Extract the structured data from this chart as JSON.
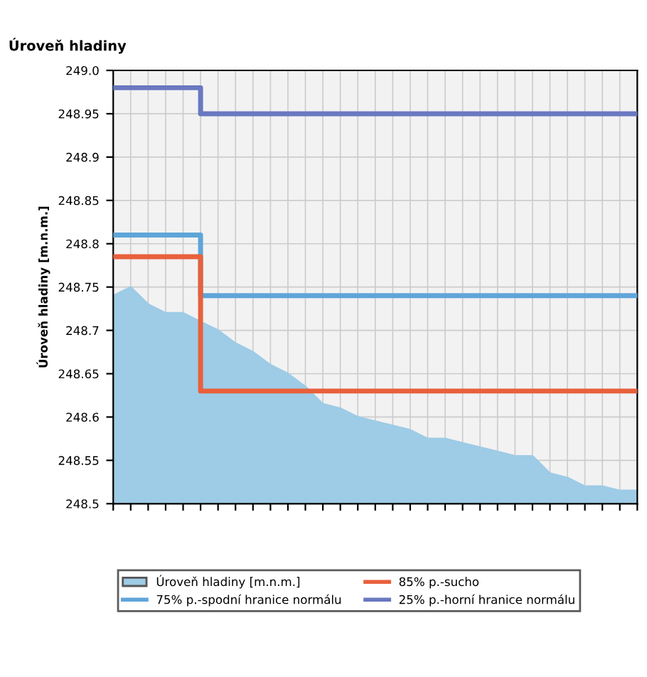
{
  "chart_data": {
    "type": "area",
    "title": "Úroveň hladiny",
    "ylabel": "Úroveň hladiny [m.n.m.]",
    "categories": [
      null,
      null,
      null,
      null,
      null,
      null,
      null,
      null,
      null,
      null,
      null,
      null,
      null,
      null,
      null,
      null,
      null,
      null,
      null,
      null,
      null,
      null,
      null,
      null,
      null,
      null,
      null,
      null,
      null,
      null,
      null
    ],
    "series": [
      {
        "name": "Úroveň hladiny [m.n.m.]",
        "type": "area",
        "color": "#9ecbe6",
        "values": [
          248.74,
          248.75,
          248.73,
          248.72,
          248.72,
          248.71,
          248.7,
          248.685,
          248.675,
          248.66,
          248.65,
          248.635,
          248.615,
          248.61,
          248.6,
          248.595,
          248.59,
          248.585,
          248.575,
          248.575,
          248.57,
          248.565,
          248.56,
          248.555,
          248.555,
          248.535,
          248.53,
          248.52,
          248.52,
          248.515,
          248.515
        ]
      },
      {
        "name": "75% p.-spodní hranice normálu",
        "type": "step",
        "color": "#5fa5d9",
        "values": [
          248.81,
          248.81,
          248.81,
          248.81,
          248.81,
          248.74,
          248.74,
          248.74,
          248.74,
          248.74,
          248.74,
          248.74,
          248.74,
          248.74,
          248.74,
          248.74,
          248.74,
          248.74,
          248.74,
          248.74,
          248.74,
          248.74,
          248.74,
          248.74,
          248.74,
          248.74,
          248.74,
          248.74,
          248.74,
          248.74,
          248.74
        ]
      },
      {
        "name": "85% p.-sucho",
        "type": "step",
        "color": "#e8603c",
        "values": [
          248.785,
          248.785,
          248.785,
          248.785,
          248.785,
          248.63,
          248.63,
          248.63,
          248.63,
          248.63,
          248.63,
          248.63,
          248.63,
          248.63,
          248.63,
          248.63,
          248.63,
          248.63,
          248.63,
          248.63,
          248.63,
          248.63,
          248.63,
          248.63,
          248.63,
          248.63,
          248.63,
          248.63,
          248.63,
          248.63,
          248.63
        ]
      },
      {
        "name": "25% p.-horní hranice normálu",
        "type": "step",
        "color": "#6a78c0",
        "values": [
          248.98,
          248.98,
          248.98,
          248.98,
          248.98,
          248.95,
          248.95,
          248.95,
          248.95,
          248.95,
          248.95,
          248.95,
          248.95,
          248.95,
          248.95,
          248.95,
          248.95,
          248.95,
          248.95,
          248.95,
          248.95,
          248.95,
          248.95,
          248.95,
          248.95,
          248.95,
          248.95,
          248.95,
          248.95,
          248.95,
          248.95
        ]
      }
    ],
    "ylim": [
      248.5,
      249.0
    ],
    "yticks": [
      248.5,
      248.55,
      248.6,
      248.65,
      248.7,
      248.75,
      248.8,
      248.85,
      248.9,
      248.95,
      {
        "value": 249.0,
        "label": "249.0"
      }
    ],
    "grid": true,
    "legend": "bottom",
    "tick_labels": "y"
  }
}
